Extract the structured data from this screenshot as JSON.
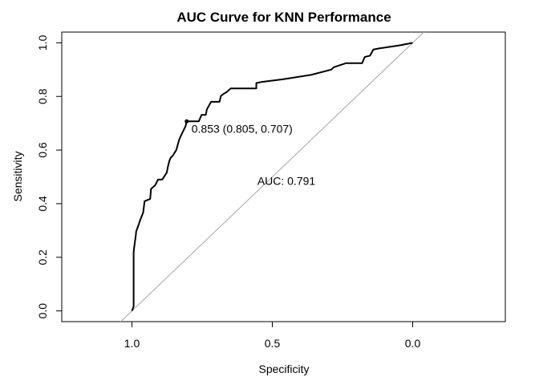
{
  "chart_data": {
    "type": "line",
    "title": "AUC Curve for KNN Performance",
    "xlabel": "Specificity",
    "ylabel": "Sensitivity",
    "x_reversed": true,
    "xlim": [
      1.25,
      -0.33
    ],
    "ylim": [
      -0.04,
      1.04
    ],
    "x_ticks": [
      1.0,
      0.5,
      0.0
    ],
    "x_tick_labels": [
      "1.0",
      "0.5",
      "0.0"
    ],
    "y_ticks": [
      0.0,
      0.2,
      0.4,
      0.6,
      0.8,
      1.0
    ],
    "y_tick_labels": [
      "0.0",
      "0.2",
      "0.4",
      "0.6",
      "0.8",
      "1.0"
    ],
    "grid": false,
    "series": [
      {
        "color": "#000000",
        "x": [
          1.0,
          0.994,
          0.994,
          0.992,
          0.986,
          0.985,
          0.976,
          0.972,
          0.96,
          0.955,
          0.935,
          0.932,
          0.917,
          0.907,
          0.902,
          0.892,
          0.876,
          0.871,
          0.866,
          0.861,
          0.856,
          0.842,
          0.832,
          0.824,
          0.809,
          0.805,
          0.79,
          0.762,
          0.752,
          0.737,
          0.733,
          0.718,
          0.688,
          0.683,
          0.673,
          0.663,
          0.648,
          0.557,
          0.557,
          0.537,
          0.463,
          0.364,
          0.29,
          0.281,
          0.238,
          0.18,
          0.171,
          0.152,
          0.14,
          0.12,
          0.05,
          0.0
        ],
        "y": [
          0.0,
          0.017,
          0.218,
          0.237,
          0.284,
          0.296,
          0.322,
          0.335,
          0.367,
          0.409,
          0.418,
          0.455,
          0.469,
          0.49,
          0.49,
          0.49,
          0.516,
          0.542,
          0.562,
          0.573,
          0.577,
          0.6,
          0.638,
          0.657,
          0.689,
          0.707,
          0.707,
          0.707,
          0.731,
          0.731,
          0.752,
          0.78,
          0.78,
          0.802,
          0.81,
          0.816,
          0.83,
          0.83,
          0.85,
          0.854,
          0.864,
          0.88,
          0.9,
          0.909,
          0.924,
          0.924,
          0.947,
          0.952,
          0.975,
          0.979,
          0.99,
          1.0
        ]
      }
    ],
    "reference_line": {
      "from": [
        1.0,
        0.0
      ],
      "to": [
        0.0,
        1.0
      ],
      "color": "#a6a6a6"
    },
    "threshold_point": {
      "specificity": 0.805,
      "sensitivity": 0.707
    },
    "annotations": {
      "threshold_label": "0.853 (0.805, 0.707)",
      "auc_label": "AUC: 0.791"
    }
  }
}
